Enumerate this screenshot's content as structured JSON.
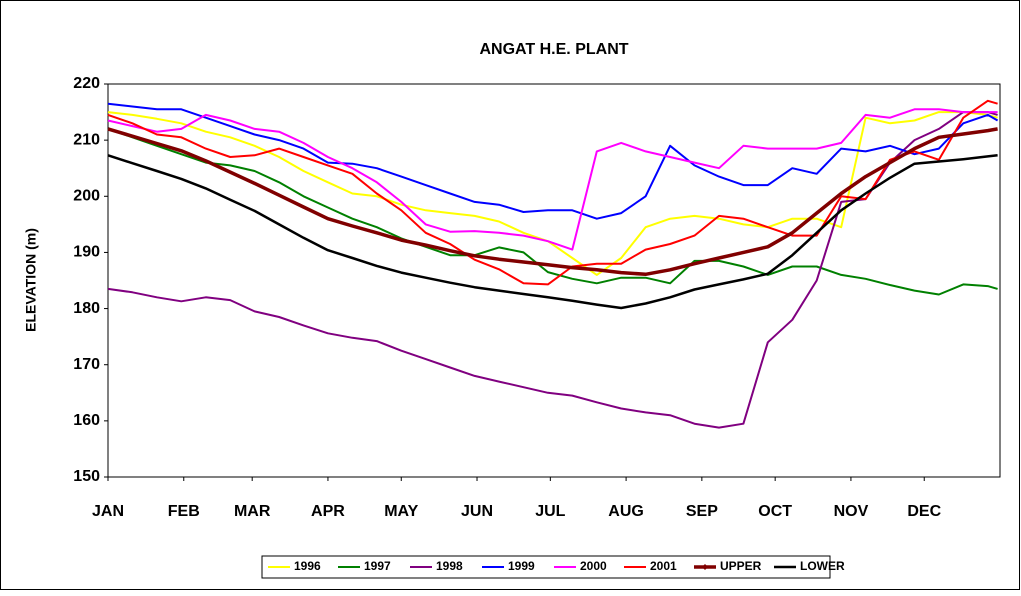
{
  "chart_data": {
    "type": "line",
    "title": "ANGAT H.E. PLANT",
    "y_label": "ELEVATION (m)",
    "x": [
      1,
      11,
      21,
      31,
      41,
      51,
      61,
      71,
      81,
      91,
      101,
      111,
      121,
      131,
      141,
      151,
      161,
      171,
      181,
      191,
      201,
      211,
      221,
      231,
      241,
      251,
      261,
      271,
      281,
      291,
      301,
      311,
      321,
      331,
      341,
      351,
      361,
      365
    ],
    "xlim": [
      1,
      366
    ],
    "xticks": [
      {
        "value": 1,
        "label": "JAN"
      },
      {
        "value": 32,
        "label": "FEB"
      },
      {
        "value": 60,
        "label": "MAR"
      },
      {
        "value": 91,
        "label": "APR"
      },
      {
        "value": 121,
        "label": "MAY"
      },
      {
        "value": 152,
        "label": "JUN"
      },
      {
        "value": 182,
        "label": "JUL"
      },
      {
        "value": 213,
        "label": "AUG"
      },
      {
        "value": 244,
        "label": "SEP"
      },
      {
        "value": 274,
        "label": "OCT"
      },
      {
        "value": 305,
        "label": "NOV"
      },
      {
        "value": 335,
        "label": "DEC"
      }
    ],
    "ylim": [
      150,
      220
    ],
    "yticks": [
      150,
      160,
      170,
      180,
      190,
      200,
      210,
      220
    ],
    "grid": false,
    "legend": "bottom",
    "series": [
      {
        "name": "1996",
        "color": "#ffff00",
        "width": 2,
        "values": [
          215,
          214.5,
          213.8,
          213,
          211.5,
          210.5,
          209,
          207,
          204.5,
          202.5,
          200.5,
          200,
          198.5,
          197.5,
          197,
          196.5,
          195.5,
          193.5,
          192,
          189,
          186,
          189,
          194.5,
          196,
          196.5,
          196,
          195,
          194.5,
          196,
          196,
          194.5,
          214,
          213,
          213.5,
          215,
          215,
          214.5,
          214
        ]
      },
      {
        "name": "1997",
        "color": "#008000",
        "width": 2,
        "values": [
          212,
          210.5,
          209,
          207.5,
          206,
          205.5,
          204.5,
          202.5,
          200,
          198,
          196,
          194.5,
          192.5,
          191,
          189.5,
          189.5,
          190.9,
          190,
          186.5,
          185.3,
          184.5,
          185.5,
          185.5,
          184.5,
          188.5,
          188.5,
          187.5,
          186,
          187.5,
          187.5,
          186,
          185.3,
          184.2,
          183.2,
          182.5,
          184.3,
          184,
          183.5
        ]
      },
      {
        "name": "1998",
        "color": "#800080",
        "width": 2,
        "values": [
          183.5,
          182.9,
          182,
          181.3,
          182,
          181.5,
          179.5,
          178.5,
          177,
          175.6,
          174.8,
          174.2,
          172.5,
          171,
          169.5,
          168,
          167,
          166,
          165,
          164.5,
          163.3,
          162.2,
          161.5,
          161,
          159.5,
          158.8,
          159.5,
          174,
          178,
          185,
          199,
          199.5,
          206,
          210,
          212,
          215,
          215,
          214.5
        ]
      },
      {
        "name": "1999",
        "color": "#0000ff",
        "width": 2,
        "values": [
          216.5,
          216,
          215.5,
          215.5,
          214,
          212.5,
          211,
          210,
          208.5,
          206,
          205.8,
          205,
          203.5,
          202,
          200.5,
          199,
          198.5,
          197.2,
          197.5,
          197.5,
          196,
          197,
          200,
          209,
          205.5,
          203.5,
          202,
          202,
          205,
          204,
          208.5,
          208,
          209,
          207.5,
          208.5,
          213,
          214.5,
          213.5
        ]
      },
      {
        "name": "2000",
        "color": "#ff00ff",
        "width": 2,
        "values": [
          213.5,
          212.5,
          211.5,
          212,
          214.5,
          213.5,
          212,
          211.5,
          209.5,
          207,
          205,
          202.5,
          199,
          195,
          193.7,
          193.8,
          193.5,
          193,
          192,
          190.5,
          208,
          209.5,
          208,
          207,
          206,
          205,
          209,
          208.5,
          208.5,
          208.5,
          209.5,
          214.5,
          214,
          215.5,
          215.5,
          215,
          215,
          215
        ]
      },
      {
        "name": "2001",
        "color": "#ff0000",
        "width": 2,
        "values": [
          214.5,
          213,
          211,
          210.5,
          208.5,
          207,
          207.3,
          208.5,
          207,
          205.5,
          204,
          200.5,
          197.5,
          193.5,
          191.5,
          188.7,
          187,
          184.5,
          184.3,
          187.5,
          188,
          188,
          190.5,
          191.5,
          193,
          196.5,
          196,
          194.5,
          193,
          193,
          200,
          199.5,
          206.5,
          208,
          206.5,
          214,
          217,
          216.5
        ]
      },
      {
        "name": "UPPER",
        "color": "#800000",
        "width": 3.5,
        "values": [
          212,
          210.7,
          209.4,
          208.1,
          206.3,
          204.3,
          202.3,
          200.2,
          198.1,
          196,
          194.7,
          193.5,
          192.2,
          191.3,
          190.3,
          189.4,
          188.8,
          188.3,
          187.8,
          187.3,
          186.9,
          186.4,
          186.1,
          186.9,
          188,
          189,
          190,
          191,
          193.5,
          197,
          200.5,
          203.5,
          206,
          208.5,
          210.5,
          211.1,
          211.7,
          212
        ]
      },
      {
        "name": "LOWER",
        "color": "#000000",
        "width": 2.5,
        "values": [
          207.3,
          205.9,
          204.5,
          203.1,
          201.4,
          199.4,
          197.4,
          195,
          192.6,
          190.4,
          189,
          187.6,
          186.4,
          185.5,
          184.6,
          183.8,
          183.2,
          182.6,
          182,
          181.4,
          180.7,
          180.1,
          180.9,
          182,
          183.4,
          184.3,
          185.2,
          186.2,
          189.5,
          193.5,
          197.5,
          200.5,
          203.3,
          205.8,
          206.2,
          206.6,
          207.1,
          207.3
        ]
      }
    ]
  }
}
